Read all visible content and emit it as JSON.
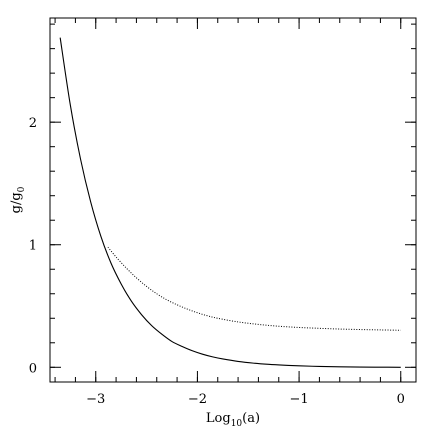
{
  "chart_data": {
    "type": "line",
    "xlabel": {
      "base": "Log",
      "sub": "10",
      "rest": "(a)"
    },
    "ylabel": {
      "base": "g/g",
      "sub": "0"
    },
    "xlim": [
      -3.45,
      0.15
    ],
    "ylim": [
      -0.12,
      2.85
    ],
    "xticks": [
      -3,
      -2,
      -1,
      0
    ],
    "xtick_labels": [
      "−3",
      "−2",
      "−1",
      "0"
    ],
    "yticks": [
      0,
      1,
      2
    ],
    "ytick_labels": [
      "0",
      "1",
      "2"
    ],
    "x_minor_step": 0.2,
    "y_minor_step": 0.2,
    "grid": false,
    "series": [
      {
        "style": "solid",
        "color": "#000000",
        "x": [
          -3.35,
          -3.25,
          -3.15,
          -3.05,
          -2.95,
          -2.85,
          -2.75,
          -2.65,
          -2.55,
          -2.45,
          -2.35,
          -2.25,
          -2.15,
          -2.05,
          -1.95,
          -1.85,
          -1.75,
          -1.6,
          -1.45,
          -1.3,
          -1.15,
          -1.0,
          -0.8,
          -0.6,
          -0.4,
          -0.2,
          0.0
        ],
        "y": [
          2.69,
          2.14,
          1.7,
          1.35,
          1.07,
          0.85,
          0.68,
          0.54,
          0.43,
          0.34,
          0.27,
          0.21,
          0.17,
          0.135,
          0.107,
          0.085,
          0.068,
          0.048,
          0.034,
          0.024,
          0.017,
          0.012,
          0.007,
          0.004,
          0.002,
          0.001,
          0.0
        ]
      },
      {
        "style": "dotted",
        "color": "#000000",
        "x": [
          -2.88,
          -2.8,
          -2.7,
          -2.6,
          -2.5,
          -2.4,
          -2.3,
          -2.2,
          -2.1,
          -2.0,
          -1.9,
          -1.8,
          -1.6,
          -1.4,
          -1.2,
          -1.0,
          -0.8,
          -0.6,
          -0.4,
          -0.2,
          0.0
        ],
        "y": [
          0.98,
          0.9,
          0.81,
          0.73,
          0.66,
          0.6,
          0.55,
          0.51,
          0.475,
          0.445,
          0.42,
          0.4,
          0.37,
          0.35,
          0.335,
          0.325,
          0.318,
          0.312,
          0.308,
          0.305,
          0.302
        ]
      }
    ]
  }
}
